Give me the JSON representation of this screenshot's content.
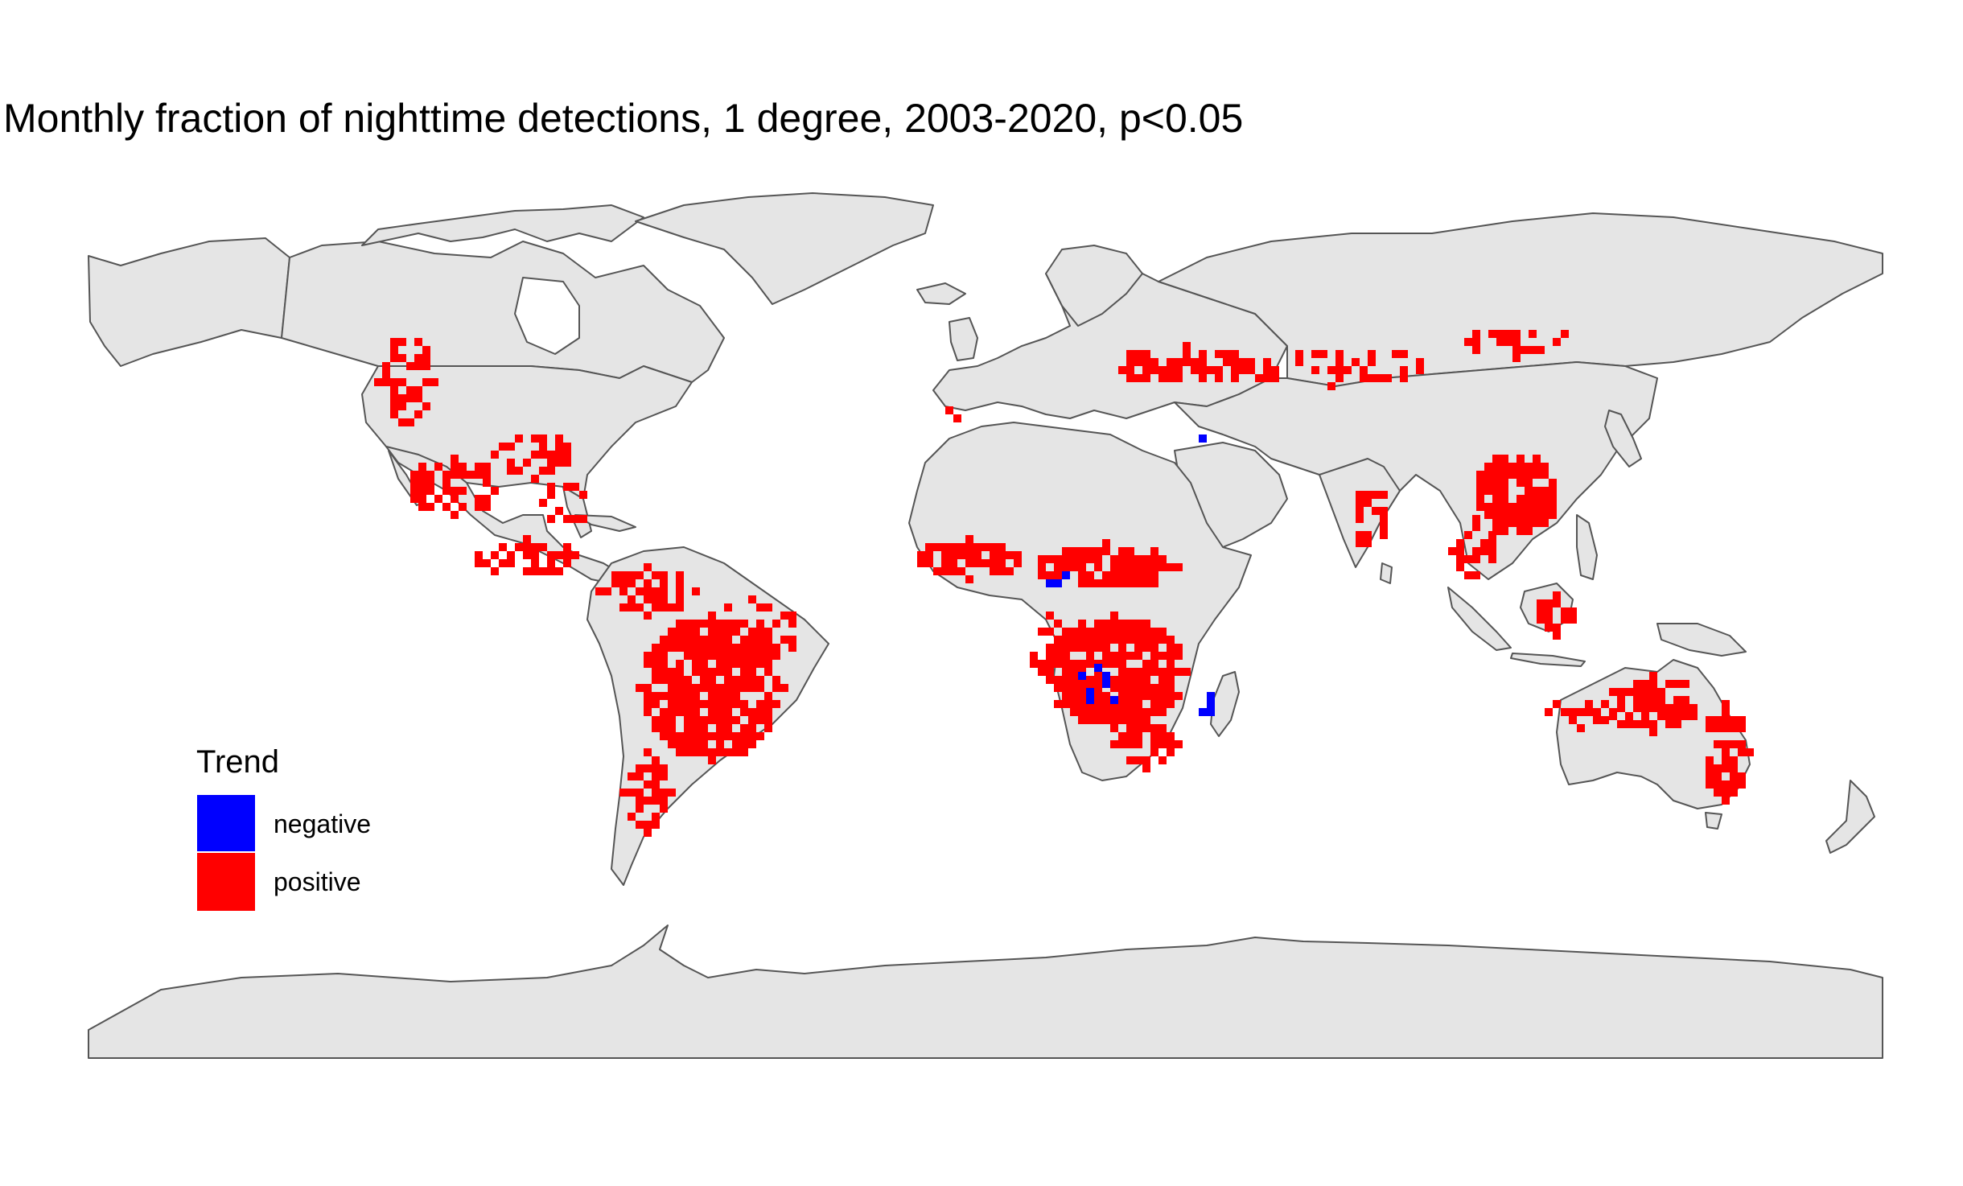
{
  "title": "Monthly fraction of nighttime detections, 1 degree, 2003-2020, p<0.05",
  "legend": {
    "title": "Trend",
    "items": [
      {
        "label": "negative",
        "color": "#0000ff"
      },
      {
        "label": "positive",
        "color": "#ff0000"
      }
    ]
  },
  "colors": {
    "land": "#e5e5e5",
    "border": "#555555",
    "ocean": "#ffffff"
  }
}
